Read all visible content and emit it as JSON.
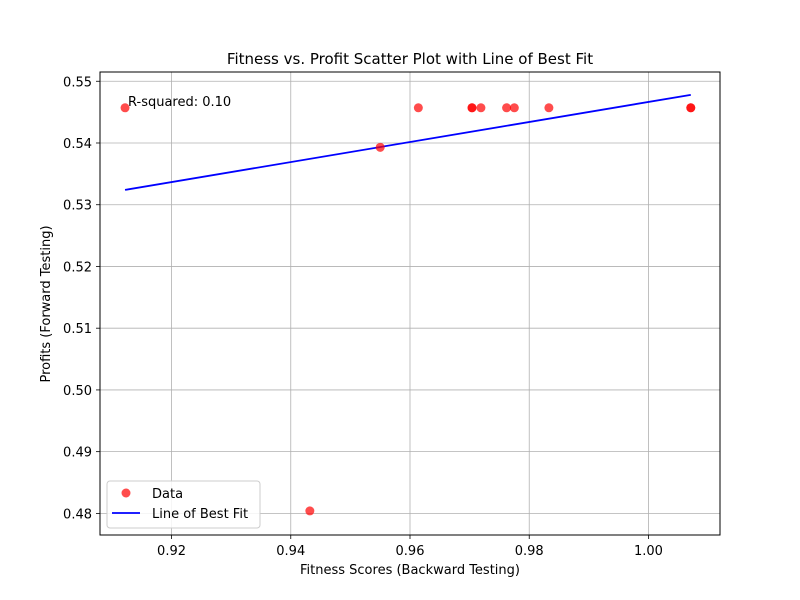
{
  "chart_data": {
    "type": "scatter",
    "title": "Fitness vs. Profit Scatter Plot with Line of Best Fit",
    "xlabel": "Fitness Scores (Backward Testing)",
    "ylabel": "Profits (Forward Testing)",
    "xlim": [
      0.908,
      1.012
    ],
    "ylim": [
      0.4765,
      0.5515
    ],
    "xticks": [
      0.92,
      0.94,
      0.96,
      0.98,
      1.0
    ],
    "xtick_labels": [
      "0.92",
      "0.94",
      "0.96",
      "0.98",
      "1.00"
    ],
    "yticks": [
      0.48,
      0.49,
      0.5,
      0.51,
      0.52,
      0.53,
      0.54,
      0.55
    ],
    "ytick_labels": [
      "0.48",
      "0.49",
      "0.50",
      "0.51",
      "0.52",
      "0.53",
      "0.54",
      "0.55"
    ],
    "grid": true,
    "annotation": "R-squared: 0.10",
    "series": [
      {
        "name": "Data",
        "kind": "scatter",
        "color": "#ff0000",
        "x": [
          0.9122,
          0.9432,
          0.955,
          0.9614,
          0.9704,
          0.9704,
          0.9719,
          0.9762,
          0.9775,
          0.9833,
          1.0071,
          1.0071
        ],
        "y": [
          0.5457,
          0.4804,
          0.5393,
          0.5457,
          0.5457,
          0.5457,
          0.5457,
          0.5457,
          0.5457,
          0.5457,
          0.5457,
          0.5457
        ]
      },
      {
        "name": "Line of Best Fit",
        "kind": "line",
        "color": "#0000ff",
        "x": [
          0.9122,
          1.0071
        ],
        "y": [
          0.5324,
          0.5478
        ]
      }
    ],
    "legend": {
      "placement": "lower-left",
      "entries": [
        "Data",
        "Line of Best Fit"
      ]
    }
  }
}
